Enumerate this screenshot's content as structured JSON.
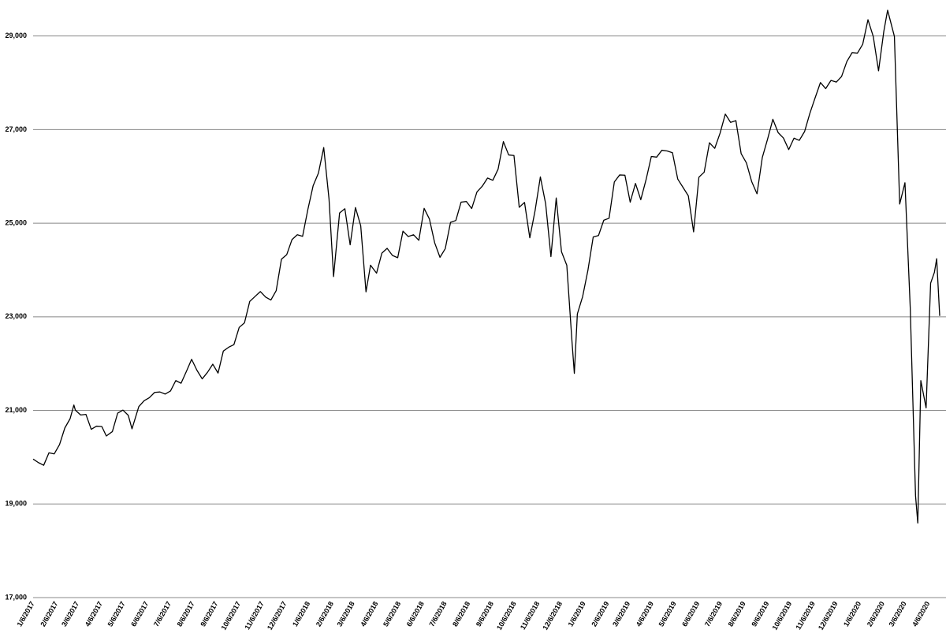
{
  "chart_data": {
    "type": "line",
    "color": "#000000",
    "grid": true,
    "x": [
      "1/6/2017",
      "1/13/2017",
      "1/20/2017",
      "1/27/2017",
      "2/3/2017",
      "2/10/2017",
      "2/17/2017",
      "2/24/2017",
      "3/1/2017",
      "3/3/2017",
      "3/10/2017",
      "3/17/2017",
      "3/24/2017",
      "3/31/2017",
      "4/7/2017",
      "4/13/2017",
      "4/21/2017",
      "4/28/2017",
      "5/5/2017",
      "5/12/2017",
      "5/17/2017",
      "5/26/2017",
      "6/2/2017",
      "6/9/2017",
      "6/16/2017",
      "6/23/2017",
      "6/30/2017",
      "7/7/2017",
      "7/14/2017",
      "7/21/2017",
      "7/28/2017",
      "8/4/2017",
      "8/11/2017",
      "8/18/2017",
      "8/25/2017",
      "9/1/2017",
      "9/8/2017",
      "9/15/2017",
      "9/22/2017",
      "9/29/2017",
      "10/6/2017",
      "10/13/2017",
      "10/20/2017",
      "10/27/2017",
      "11/3/2017",
      "11/10/2017",
      "11/17/2017",
      "11/24/2017",
      "12/1/2017",
      "12/8/2017",
      "12/15/2017",
      "12/22/2017",
      "12/29/2017",
      "1/5/2018",
      "1/12/2018",
      "1/19/2018",
      "1/26/2018",
      "2/2/2018",
      "2/8/2018",
      "2/16/2018",
      "2/23/2018",
      "3/2/2018",
      "3/9/2018",
      "3/16/2018",
      "3/23/2018",
      "3/29/2018",
      "4/6/2018",
      "4/13/2018",
      "4/20/2018",
      "4/27/2018",
      "5/4/2018",
      "5/11/2018",
      "5/18/2018",
      "5/25/2018",
      "6/1/2018",
      "6/8/2018",
      "6/15/2018",
      "6/22/2018",
      "6/29/2018",
      "7/6/2018",
      "7/13/2018",
      "7/20/2018",
      "7/27/2018",
      "8/3/2018",
      "8/10/2018",
      "8/17/2018",
      "8/24/2018",
      "8/31/2018",
      "9/7/2018",
      "9/14/2018",
      "9/21/2018",
      "9/28/2018",
      "10/5/2018",
      "10/12/2018",
      "10/19/2018",
      "10/26/2018",
      "11/2/2018",
      "11/9/2018",
      "11/16/2018",
      "11/23/2018",
      "11/30/2018",
      "12/7/2018",
      "12/14/2018",
      "12/21/2018",
      "12/24/2018",
      "12/28/2018",
      "1/4/2019",
      "1/11/2019",
      "1/18/2019",
      "1/25/2019",
      "2/1/2019",
      "2/8/2019",
      "2/15/2019",
      "2/22/2019",
      "3/1/2019",
      "3/8/2019",
      "3/15/2019",
      "3/22/2019",
      "3/29/2019",
      "4/5/2019",
      "4/12/2019",
      "4/19/2019",
      "4/26/2019",
      "5/3/2019",
      "5/10/2019",
      "5/17/2019",
      "5/24/2019",
      "5/31/2019",
      "6/7/2019",
      "6/14/2019",
      "6/21/2019",
      "6/28/2019",
      "7/5/2019",
      "7/12/2019",
      "7/19/2019",
      "7/26/2019",
      "8/2/2019",
      "8/9/2019",
      "8/16/2019",
      "8/23/2019",
      "8/30/2019",
      "9/6/2019",
      "9/13/2019",
      "9/20/2019",
      "9/27/2019",
      "10/4/2019",
      "10/11/2019",
      "10/18/2019",
      "10/25/2019",
      "11/1/2019",
      "11/8/2019",
      "11/15/2019",
      "11/22/2019",
      "11/29/2019",
      "12/6/2019",
      "12/13/2019",
      "12/20/2019",
      "12/27/2019",
      "1/3/2020",
      "1/10/2020",
      "1/17/2020",
      "1/24/2020",
      "1/31/2020",
      "2/7/2020",
      "2/12/2020",
      "2/21/2020",
      "2/28/2020",
      "3/6/2020",
      "3/13/2020",
      "3/20/2020",
      "3/23/2020",
      "3/27/2020",
      "4/3/2020",
      "4/9/2020",
      "4/14/2020",
      "4/17/2020",
      "4/21/2020"
    ],
    "values": [
      19960,
      19885,
      19827,
      20094,
      20071,
      20269,
      20624,
      20822,
      21115,
      21005,
      20902,
      20914,
      20596,
      20663,
      20656,
      20453,
      20547,
      20940,
      21006,
      20896,
      20606,
      21080,
      21206,
      21271,
      21384,
      21394,
      21349,
      21414,
      21637,
      21580,
      21830,
      22092,
      21858,
      21674,
      21813,
      21987,
      21797,
      22268,
      22349,
      22405,
      22773,
      22871,
      23329,
      23434,
      23539,
      23422,
      23358,
      23558,
      24231,
      24329,
      24651,
      24754,
      24719,
      25295,
      25803,
      26071,
      26616,
      25520,
      23860,
      25219,
      25309,
      24538,
      25335,
      24946,
      23533,
      24103,
      23933,
      24360,
      24463,
      24311,
      24263,
      24831,
      24715,
      24753,
      24635,
      25317,
      25090,
      24580,
      24271,
      24456,
      25019,
      25058,
      25451,
      25463,
      25313,
      25669,
      25790,
      25965,
      25917,
      26155,
      26744,
      26458,
      26447,
      25340,
      25444,
      24688,
      25270,
      25989,
      25413,
      24286,
      25538,
      24389,
      24101,
      22445,
      21792,
      23062,
      23433,
      23996,
      24706,
      24737,
      25063,
      25106,
      25883,
      26031,
      26026,
      25450,
      25849,
      25502,
      25929,
      26425,
      26412,
      26559,
      26543,
      26505,
      25942,
      25764,
      25586,
      24815,
      25984,
      26090,
      26719,
      26600,
      26922,
      27332,
      27154,
      27192,
      26485,
      26287,
      25886,
      25628,
      26403,
      26797,
      27220,
      26935,
      26820,
      26573,
      26817,
      26770,
      26958,
      27347,
      27681,
      28005,
      27876,
      28051,
      28015,
      28135,
      28455,
      28645,
      28634,
      28823,
      29348,
      28989,
      28256,
      29102,
      29551,
      28992,
      25409,
      25864,
      23185,
      19174,
      18592,
      21637,
      21053,
      23719,
      23950,
      24242,
      23019
    ],
    "xlim": [
      "1/6/2017",
      "4/21/2020"
    ],
    "xticks": [
      "1/6/2017",
      "2/6/2017",
      "3/6/2017",
      "4/6/2017",
      "5/6/2017",
      "6/6/2017",
      "7/6/2017",
      "8/6/2017",
      "9/6/2017",
      "10/6/2017",
      "11/6/2017",
      "12/6/2017",
      "1/6/2018",
      "2/6/2018",
      "3/6/2018",
      "4/6/2018",
      "5/6/2018",
      "6/6/2018",
      "7/6/2018",
      "8/6/2018",
      "9/6/2018",
      "10/6/2018",
      "11/6/2018",
      "12/6/2018",
      "1/6/2019",
      "2/6/2019",
      "3/6/2019",
      "4/6/2019",
      "5/6/2019",
      "6/6/2019",
      "7/6/2019",
      "8/6/2019",
      "9/6/2019",
      "10/6/2019",
      "11/6/2019",
      "12/6/2019",
      "1/6/2020",
      "2/6/2020",
      "3/6/2020",
      "4/6/2020"
    ],
    "ylim": [
      17000,
      29500
    ],
    "yticks": [
      {
        "value": 17000,
        "label": "17,000"
      },
      {
        "value": 19000,
        "label": "19,000"
      },
      {
        "value": 21000,
        "label": "21,000"
      },
      {
        "value": 23000,
        "label": "23,000"
      },
      {
        "value": 25000,
        "label": "25,000"
      },
      {
        "value": 27000,
        "label": "27,000"
      },
      {
        "value": 29000,
        "label": "29,000"
      }
    ]
  }
}
